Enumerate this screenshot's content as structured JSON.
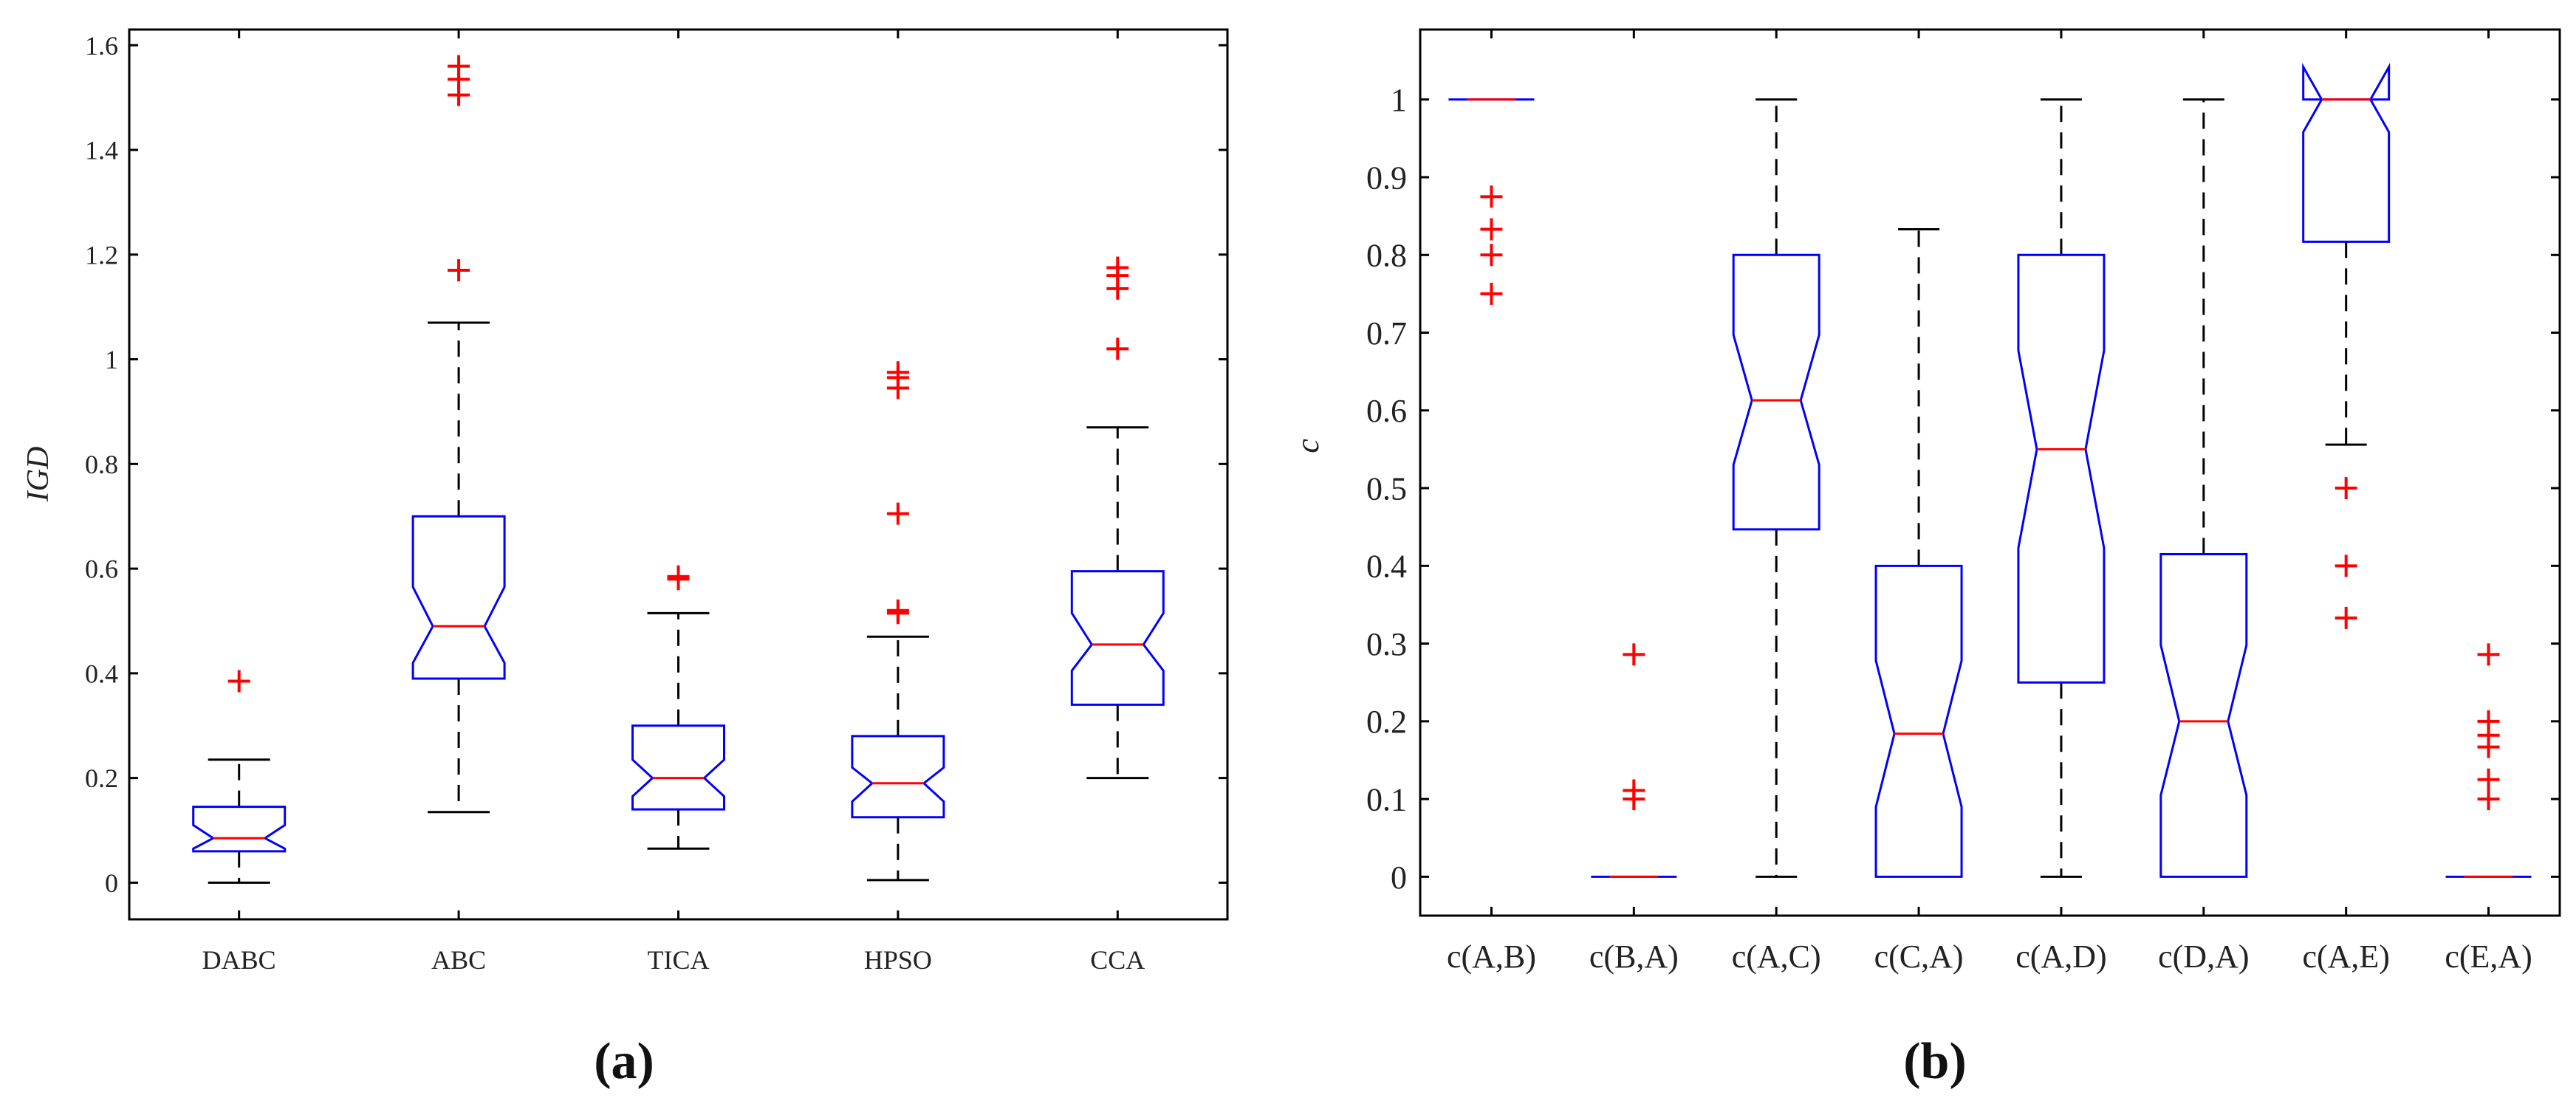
{
  "figure_labels": {
    "a": "(a)",
    "b": "(b)"
  },
  "colors": {
    "box": "#0000ff",
    "median": "#ff0000",
    "outlier": "#ff0000",
    "whisker": "#000000",
    "axis": "#000000"
  },
  "chart_data": [
    {
      "id": "a",
      "type": "boxplot",
      "notched": true,
      "title": "",
      "xlabel": "",
      "ylabel": "IGD",
      "ylim": [
        -0.07,
        1.63
      ],
      "yticks": [
        0,
        0.2,
        0.4,
        0.6,
        0.8,
        1,
        1.2,
        1.4,
        1.6
      ],
      "ytick_labels": [
        "0",
        "0.2",
        "0.4",
        "0.6",
        "0.8",
        "1",
        "1.2",
        "1.4",
        "1.6"
      ],
      "categories": [
        "DABC",
        "ABC",
        "TICA",
        "HPSO",
        "CCA"
      ],
      "boxes": [
        {
          "label": "DABC",
          "whisker_low": 0.0,
          "q1": 0.06,
          "notch_low": 0.065,
          "median": 0.085,
          "notch_high": 0.11,
          "q3": 0.145,
          "whisker_high": 0.235,
          "outliers": [
            0.385
          ]
        },
        {
          "label": "ABC",
          "whisker_low": 0.135,
          "q1": 0.39,
          "notch_low": 0.42,
          "median": 0.49,
          "notch_high": 0.565,
          "q3": 0.7,
          "whisker_high": 1.07,
          "outliers": [
            1.17,
            1.505,
            1.535,
            1.56
          ]
        },
        {
          "label": "TICA",
          "whisker_low": 0.065,
          "q1": 0.14,
          "notch_low": 0.165,
          "median": 0.2,
          "notch_high": 0.235,
          "q3": 0.3,
          "whisker_high": 0.515,
          "outliers": [
            0.58,
            0.585
          ]
        },
        {
          "label": "HPSO",
          "whisker_low": 0.005,
          "q1": 0.125,
          "notch_low": 0.155,
          "median": 0.19,
          "notch_high": 0.22,
          "q3": 0.28,
          "whisker_high": 0.47,
          "outliers": [
            0.515,
            0.52,
            0.705,
            0.945,
            0.965,
            0.975
          ]
        },
        {
          "label": "CCA",
          "whisker_low": 0.2,
          "q1": 0.34,
          "notch_low": 0.405,
          "median": 0.455,
          "notch_high": 0.515,
          "q3": 0.595,
          "whisker_high": 0.87,
          "outliers": [
            1.02,
            1.135,
            1.16,
            1.175
          ]
        }
      ]
    },
    {
      "id": "b",
      "type": "boxplot",
      "notched": true,
      "title": "",
      "xlabel": "",
      "ylabel": "c",
      "ylim": [
        -0.05,
        1.09
      ],
      "yticks": [
        0,
        0.1,
        0.2,
        0.3,
        0.4,
        0.5,
        0.6,
        0.7,
        0.8,
        0.9,
        1
      ],
      "ytick_labels": [
        "0",
        "0.1",
        "0.2",
        "0.3",
        "0.4",
        "0.5",
        "0.6",
        "0.7",
        "0.8",
        "0.9",
        "1"
      ],
      "categories": [
        "c(A,B)",
        "c(B,A)",
        "c(A,C)",
        "c(C,A)",
        "c(A,D)",
        "c(D,A)",
        "c(A,E)",
        "c(E,A)"
      ],
      "boxes": [
        {
          "label": "c(A,B)",
          "whisker_low": 1.0,
          "q1": 1.0,
          "notch_low": 1.0,
          "median": 1.0,
          "notch_high": 1.0,
          "q3": 1.0,
          "whisker_high": 1.0,
          "outliers": [
            0.75,
            0.8,
            0.833,
            0.875
          ]
        },
        {
          "label": "c(B,A)",
          "whisker_low": 0.0,
          "q1": 0.0,
          "notch_low": 0.0,
          "median": 0.0,
          "notch_high": 0.0,
          "q3": 0.0,
          "whisker_high": 0.0,
          "outliers": [
            0.1,
            0.111,
            0.286
          ]
        },
        {
          "label": "c(A,C)",
          "whisker_low": 0.0,
          "q1": 0.447,
          "notch_low": 0.53,
          "median": 0.613,
          "notch_high": 0.697,
          "q3": 0.8,
          "whisker_high": 1.0,
          "outliers": []
        },
        {
          "label": "c(C,A)",
          "whisker_low": 0.0,
          "q1": 0.0,
          "notch_low": 0.09,
          "median": 0.184,
          "notch_high": 0.278,
          "q3": 0.4,
          "whisker_high": 0.833,
          "outliers": []
        },
        {
          "label": "c(A,D)",
          "whisker_low": 0.0,
          "q1": 0.25,
          "notch_low": 0.423,
          "median": 0.55,
          "notch_high": 0.677,
          "q3": 0.8,
          "whisker_high": 1.0,
          "outliers": []
        },
        {
          "label": "c(D,A)",
          "whisker_low": 0.0,
          "q1": 0.0,
          "notch_low": 0.105,
          "median": 0.2,
          "notch_high": 0.298,
          "q3": 0.415,
          "whisker_high": 1.0,
          "outliers": []
        },
        {
          "label": "c(A,E)",
          "whisker_low": 0.556,
          "q1": 0.817,
          "notch_low": 0.958,
          "median": 1.0,
          "notch_high": 1.042,
          "q3": 1.0,
          "whisker_high": 1.0,
          "outliers": [
            0.333,
            0.4,
            0.5
          ]
        },
        {
          "label": "c(E,A)",
          "whisker_low": 0.0,
          "q1": 0.0,
          "notch_low": 0.0,
          "median": 0.0,
          "notch_high": 0.0,
          "q3": 0.0,
          "whisker_high": 0.0,
          "outliers": [
            0.1,
            0.125,
            0.167,
            0.182,
            0.2,
            0.286
          ]
        }
      ]
    }
  ]
}
